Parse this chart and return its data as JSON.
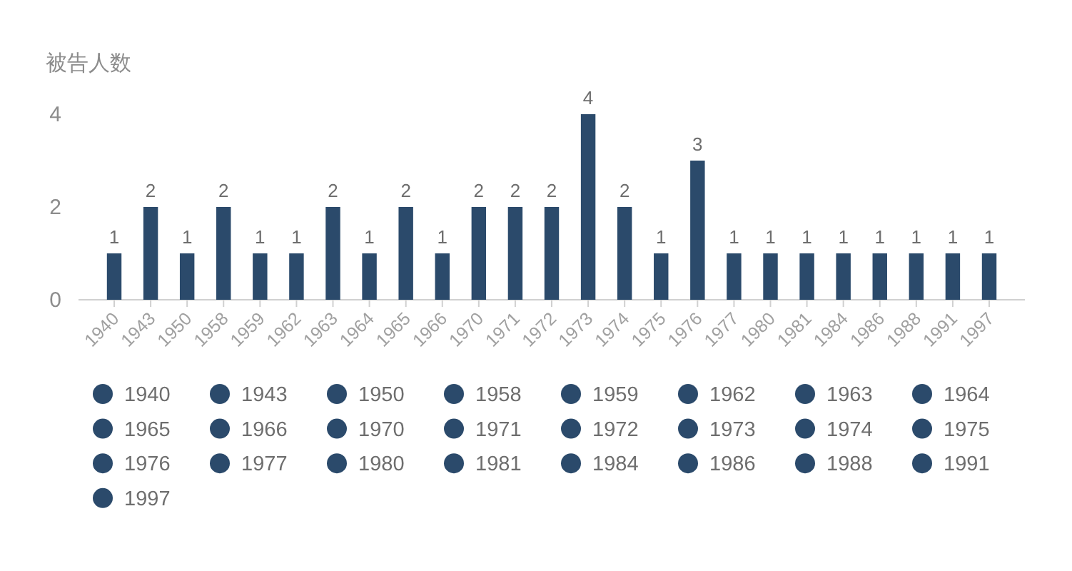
{
  "chart_data": {
    "type": "bar",
    "ylabel": "被告人数",
    "stacked": true,
    "categories": [
      "1940",
      "1943",
      "1950",
      "1958",
      "1959",
      "1962",
      "1963",
      "1964",
      "1965",
      "1966",
      "1970",
      "1971",
      "1972",
      "1973",
      "1974",
      "1975",
      "1976",
      "1977",
      "1980",
      "1981",
      "1984",
      "1986",
      "1988",
      "1991",
      "1997"
    ],
    "series": [
      {
        "name": "1940",
        "color": "#2b4a6b",
        "values": [
          1,
          null,
          null,
          null,
          null,
          null,
          null,
          null,
          null,
          null,
          null,
          null,
          null,
          null,
          null,
          null,
          null,
          null,
          null,
          null,
          null,
          null,
          null,
          null,
          null
        ]
      },
      {
        "name": "1943",
        "color": "#2b4a6b",
        "values": [
          null,
          2,
          null,
          null,
          null,
          null,
          null,
          null,
          null,
          null,
          null,
          null,
          null,
          null,
          null,
          null,
          null,
          null,
          null,
          null,
          null,
          null,
          null,
          null,
          null
        ]
      },
      {
        "name": "1950",
        "color": "#2b4a6b",
        "values": [
          null,
          null,
          1,
          null,
          null,
          null,
          null,
          null,
          null,
          null,
          null,
          null,
          null,
          null,
          null,
          null,
          null,
          null,
          null,
          null,
          null,
          null,
          null,
          null,
          null
        ]
      },
      {
        "name": "1958",
        "color": "#2b4a6b",
        "values": [
          null,
          null,
          null,
          2,
          null,
          null,
          null,
          null,
          null,
          null,
          null,
          null,
          null,
          null,
          null,
          null,
          null,
          null,
          null,
          null,
          null,
          null,
          null,
          null,
          null
        ]
      },
      {
        "name": "1959",
        "color": "#2b4a6b",
        "values": [
          null,
          null,
          null,
          null,
          1,
          null,
          null,
          null,
          null,
          null,
          null,
          null,
          null,
          null,
          null,
          null,
          null,
          null,
          null,
          null,
          null,
          null,
          null,
          null,
          null
        ]
      },
      {
        "name": "1962",
        "color": "#2b4a6b",
        "values": [
          null,
          null,
          null,
          null,
          null,
          1,
          null,
          null,
          null,
          null,
          null,
          null,
          null,
          null,
          null,
          null,
          null,
          null,
          null,
          null,
          null,
          null,
          null,
          null,
          null
        ]
      },
      {
        "name": "1963",
        "color": "#2b4a6b",
        "values": [
          null,
          null,
          null,
          null,
          null,
          null,
          2,
          null,
          null,
          null,
          null,
          null,
          null,
          null,
          null,
          null,
          null,
          null,
          null,
          null,
          null,
          null,
          null,
          null,
          null
        ]
      },
      {
        "name": "1964",
        "color": "#2b4a6b",
        "values": [
          null,
          null,
          null,
          null,
          null,
          null,
          null,
          1,
          null,
          null,
          null,
          null,
          null,
          null,
          null,
          null,
          null,
          null,
          null,
          null,
          null,
          null,
          null,
          null,
          null
        ]
      },
      {
        "name": "1965",
        "color": "#2b4a6b",
        "values": [
          null,
          null,
          null,
          null,
          null,
          null,
          null,
          null,
          2,
          null,
          null,
          null,
          null,
          null,
          null,
          null,
          null,
          null,
          null,
          null,
          null,
          null,
          null,
          null,
          null
        ]
      },
      {
        "name": "1966",
        "color": "#2b4a6b",
        "values": [
          null,
          null,
          null,
          null,
          null,
          null,
          null,
          null,
          null,
          1,
          null,
          null,
          null,
          null,
          null,
          null,
          null,
          null,
          null,
          null,
          null,
          null,
          null,
          null,
          null
        ]
      },
      {
        "name": "1970",
        "color": "#2b4a6b",
        "values": [
          null,
          null,
          null,
          null,
          null,
          null,
          null,
          null,
          null,
          null,
          2,
          null,
          null,
          null,
          null,
          null,
          null,
          null,
          null,
          null,
          null,
          null,
          null,
          null,
          null
        ]
      },
      {
        "name": "1971",
        "color": "#2b4a6b",
        "values": [
          null,
          null,
          null,
          null,
          null,
          null,
          null,
          null,
          null,
          null,
          null,
          2,
          null,
          null,
          null,
          null,
          null,
          null,
          null,
          null,
          null,
          null,
          null,
          null,
          null
        ]
      },
      {
        "name": "1972",
        "color": "#2b4a6b",
        "values": [
          null,
          null,
          null,
          null,
          null,
          null,
          null,
          null,
          null,
          null,
          null,
          null,
          2,
          null,
          null,
          null,
          null,
          null,
          null,
          null,
          null,
          null,
          null,
          null,
          null
        ]
      },
      {
        "name": "1973",
        "color": "#2b4a6b",
        "values": [
          null,
          null,
          null,
          null,
          null,
          null,
          null,
          null,
          null,
          null,
          null,
          null,
          null,
          4,
          null,
          null,
          null,
          null,
          null,
          null,
          null,
          null,
          null,
          null,
          null
        ]
      },
      {
        "name": "1974",
        "color": "#2b4a6b",
        "values": [
          null,
          null,
          null,
          null,
          null,
          null,
          null,
          null,
          null,
          null,
          null,
          null,
          null,
          null,
          2,
          null,
          null,
          null,
          null,
          null,
          null,
          null,
          null,
          null,
          null
        ]
      },
      {
        "name": "1975",
        "color": "#2b4a6b",
        "values": [
          null,
          null,
          null,
          null,
          null,
          null,
          null,
          null,
          null,
          null,
          null,
          null,
          null,
          null,
          null,
          1,
          null,
          null,
          null,
          null,
          null,
          null,
          null,
          null,
          null
        ]
      },
      {
        "name": "1976",
        "color": "#2b4a6b",
        "values": [
          null,
          null,
          null,
          null,
          null,
          null,
          null,
          null,
          null,
          null,
          null,
          null,
          null,
          null,
          null,
          null,
          3,
          null,
          null,
          null,
          null,
          null,
          null,
          null,
          null
        ]
      },
      {
        "name": "1977",
        "color": "#2b4a6b",
        "values": [
          null,
          null,
          null,
          null,
          null,
          null,
          null,
          null,
          null,
          null,
          null,
          null,
          null,
          null,
          null,
          null,
          null,
          1,
          null,
          null,
          null,
          null,
          null,
          null,
          null
        ]
      },
      {
        "name": "1980",
        "color": "#2b4a6b",
        "values": [
          null,
          null,
          null,
          null,
          null,
          null,
          null,
          null,
          null,
          null,
          null,
          null,
          null,
          null,
          null,
          null,
          null,
          null,
          1,
          null,
          null,
          null,
          null,
          null,
          null
        ]
      },
      {
        "name": "1981",
        "color": "#2b4a6b",
        "values": [
          null,
          null,
          null,
          null,
          null,
          null,
          null,
          null,
          null,
          null,
          null,
          null,
          null,
          null,
          null,
          null,
          null,
          null,
          null,
          1,
          null,
          null,
          null,
          null,
          null
        ]
      },
      {
        "name": "1984",
        "color": "#2b4a6b",
        "values": [
          null,
          null,
          null,
          null,
          null,
          null,
          null,
          null,
          null,
          null,
          null,
          null,
          null,
          null,
          null,
          null,
          null,
          null,
          null,
          null,
          1,
          null,
          null,
          null,
          null
        ]
      },
      {
        "name": "1986",
        "color": "#2b4a6b",
        "values": [
          null,
          null,
          null,
          null,
          null,
          null,
          null,
          null,
          null,
          null,
          null,
          null,
          null,
          null,
          null,
          null,
          null,
          null,
          null,
          null,
          null,
          1,
          null,
          null,
          null
        ]
      },
      {
        "name": "1988",
        "color": "#2b4a6b",
        "values": [
          null,
          null,
          null,
          null,
          null,
          null,
          null,
          null,
          null,
          null,
          null,
          null,
          null,
          null,
          null,
          null,
          null,
          null,
          null,
          null,
          null,
          null,
          1,
          null,
          null
        ]
      },
      {
        "name": "1991",
        "color": "#2b4a6b",
        "values": [
          null,
          null,
          null,
          null,
          null,
          null,
          null,
          null,
          null,
          null,
          null,
          null,
          null,
          null,
          null,
          null,
          null,
          null,
          null,
          null,
          null,
          null,
          null,
          1,
          null
        ]
      },
      {
        "name": "1997",
        "color": "#2b4a6b",
        "values": [
          null,
          null,
          null,
          null,
          null,
          null,
          null,
          null,
          null,
          null,
          null,
          null,
          null,
          null,
          null,
          null,
          null,
          null,
          null,
          null,
          null,
          null,
          null,
          null,
          1
        ]
      }
    ],
    "ylim": [
      0,
      4
    ],
    "yticks": [
      0,
      2,
      4
    ],
    "data_labels": true,
    "legend": "bottom"
  }
}
